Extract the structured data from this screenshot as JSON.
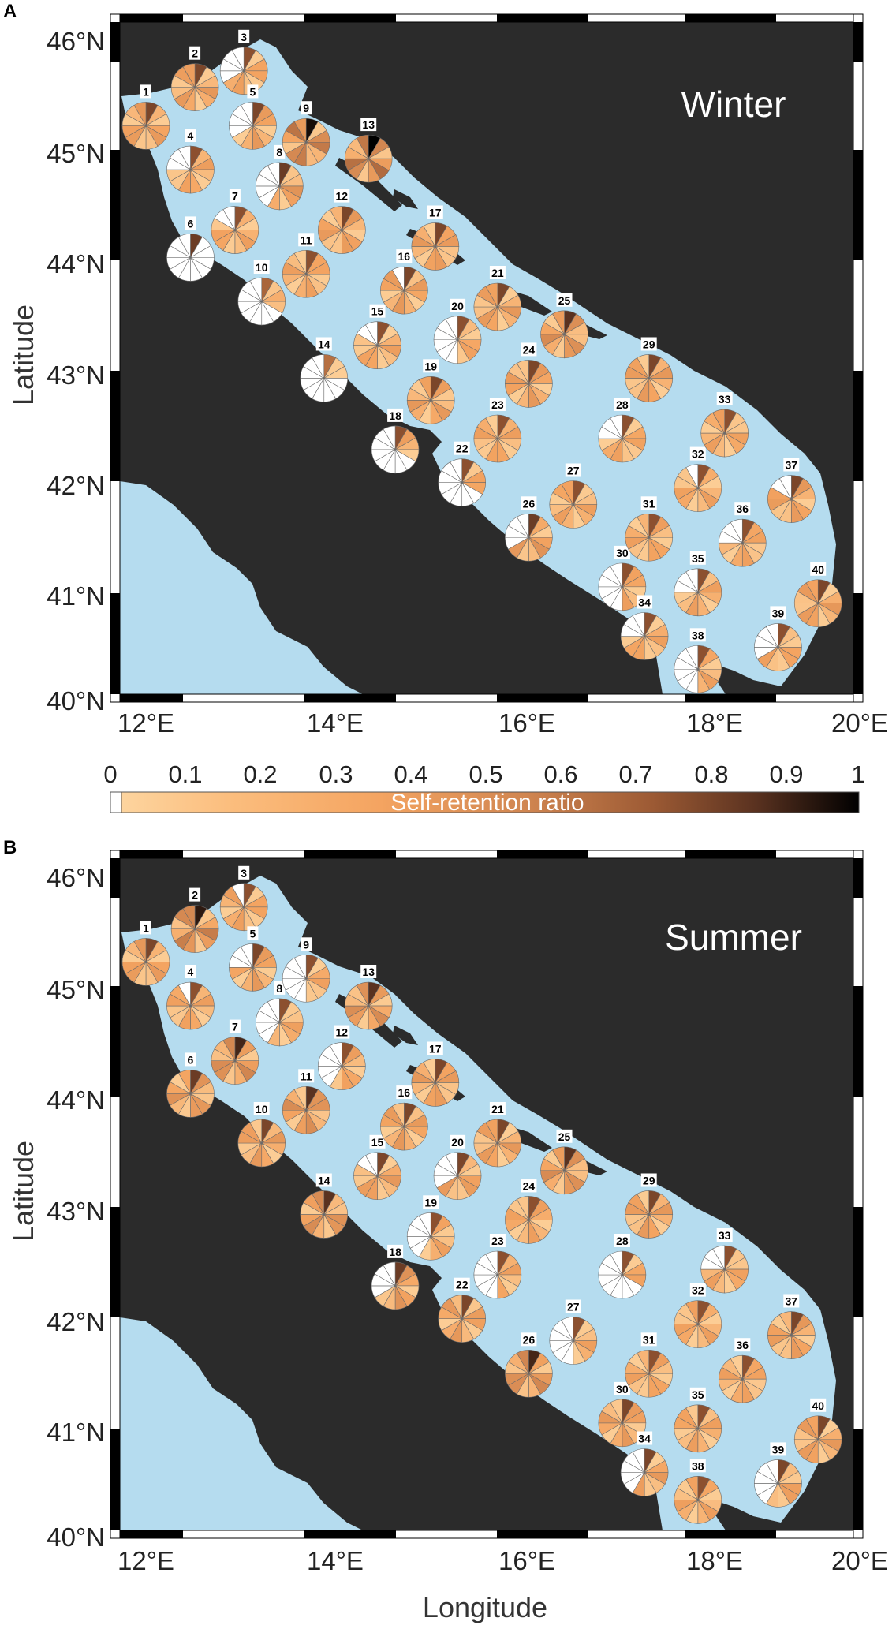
{
  "colors": {
    "sea": "#b5dcef",
    "land": "#2b2b2b",
    "frame_dark": "#000000",
    "frame_light": "#ffffff",
    "colormap": [
      "#ffffff",
      "#fdd49e",
      "#f4a461",
      "#d08550",
      "#9c5a34",
      "#5a3220",
      "#000000"
    ]
  },
  "colorbar": {
    "title": "Self-retention ratio",
    "ticks": [
      "0",
      "0.1",
      "0.2",
      "0.3",
      "0.4",
      "0.5",
      "0.6",
      "0.7",
      "0.8",
      "0.9",
      "1"
    ]
  },
  "axes": {
    "x_ticks": [
      "12°E",
      "14°E",
      "16°E",
      "18°E",
      "20°E"
    ],
    "y_ticks": [
      "40°N",
      "41°N",
      "42°N",
      "43°N",
      "44°N",
      "45°N",
      "46°N"
    ],
    "xlabel": "Longitude",
    "ylabel": "Latitude"
  },
  "panels": [
    {
      "letter": "A",
      "season": "Winter",
      "sites": [
        {
          "id": "1",
          "lon": 12.0,
          "lat": 45.25,
          "dominant": 0.35,
          "white": 0
        },
        {
          "id": "2",
          "lon": 12.55,
          "lat": 45.6,
          "dominant": 0.35,
          "white": 0
        },
        {
          "id": "3",
          "lon": 13.1,
          "lat": 45.75,
          "dominant": 0.3,
          "white": 4
        },
        {
          "id": "4",
          "lon": 12.5,
          "lat": 44.85,
          "dominant": 0.3,
          "white": 3
        },
        {
          "id": "5",
          "lon": 13.2,
          "lat": 45.25,
          "dominant": 0.35,
          "white": 4
        },
        {
          "id": "6",
          "lon": 12.5,
          "lat": 44.05,
          "dominant": 0.4,
          "white": 11
        },
        {
          "id": "7",
          "lon": 13.0,
          "lat": 44.3,
          "dominant": 0.3,
          "white": 2
        },
        {
          "id": "8",
          "lon": 13.5,
          "lat": 44.7,
          "dominant": 0.4,
          "white": 5
        },
        {
          "id": "9",
          "lon": 13.8,
          "lat": 45.1,
          "dominant": 0.6,
          "white": 0
        },
        {
          "id": "10",
          "lon": 13.3,
          "lat": 43.65,
          "dominant": 0.2,
          "white": 8
        },
        {
          "id": "11",
          "lon": 13.8,
          "lat": 43.9,
          "dominant": 0.3,
          "white": 0
        },
        {
          "id": "12",
          "lon": 14.2,
          "lat": 44.3,
          "dominant": 0.35,
          "white": 0
        },
        {
          "id": "13",
          "lon": 14.5,
          "lat": 44.95,
          "dominant": 0.65,
          "white": 0
        },
        {
          "id": "14",
          "lon": 14.0,
          "lat": 42.95,
          "dominant": 0.15,
          "white": 9
        },
        {
          "id": "15",
          "lon": 14.6,
          "lat": 43.25,
          "dominant": 0.3,
          "white": 2
        },
        {
          "id": "16",
          "lon": 14.9,
          "lat": 43.75,
          "dominant": 0.35,
          "white": 1
        },
        {
          "id": "17",
          "lon": 15.25,
          "lat": 44.15,
          "dominant": 0.35,
          "white": 0
        },
        {
          "id": "18",
          "lon": 14.8,
          "lat": 42.3,
          "dominant": 0.3,
          "white": 8
        },
        {
          "id": "19",
          "lon": 15.2,
          "lat": 42.75,
          "dominant": 0.35,
          "white": 0
        },
        {
          "id": "20",
          "lon": 15.5,
          "lat": 43.3,
          "dominant": 0.3,
          "white": 6
        },
        {
          "id": "21",
          "lon": 15.95,
          "lat": 43.6,
          "dominant": 0.35,
          "white": 0
        },
        {
          "id": "22",
          "lon": 15.55,
          "lat": 42.0,
          "dominant": 0.3,
          "white": 8
        },
        {
          "id": "23",
          "lon": 15.95,
          "lat": 42.4,
          "dominant": 0.3,
          "white": 0
        },
        {
          "id": "24",
          "lon": 16.3,
          "lat": 42.9,
          "dominant": 0.35,
          "white": 0
        },
        {
          "id": "25",
          "lon": 16.7,
          "lat": 43.35,
          "dominant": 0.45,
          "white": 0
        },
        {
          "id": "26",
          "lon": 16.3,
          "lat": 41.5,
          "dominant": 0.4,
          "white": 4
        },
        {
          "id": "27",
          "lon": 16.8,
          "lat": 41.8,
          "dominant": 0.3,
          "white": 0
        },
        {
          "id": "28",
          "lon": 17.35,
          "lat": 42.4,
          "dominant": 0.3,
          "white": 3
        },
        {
          "id": "29",
          "lon": 17.65,
          "lat": 42.95,
          "dominant": 0.35,
          "white": 0
        },
        {
          "id": "30",
          "lon": 17.35,
          "lat": 41.05,
          "dominant": 0.3,
          "white": 6
        },
        {
          "id": "31",
          "lon": 17.65,
          "lat": 41.5,
          "dominant": 0.3,
          "white": 0
        },
        {
          "id": "32",
          "lon": 18.2,
          "lat": 41.95,
          "dominant": 0.3,
          "white": 1
        },
        {
          "id": "33",
          "lon": 18.5,
          "lat": 42.45,
          "dominant": 0.3,
          "white": 0
        },
        {
          "id": "34",
          "lon": 17.6,
          "lat": 40.6,
          "dominant": 0.3,
          "white": 3
        },
        {
          "id": "35",
          "lon": 18.2,
          "lat": 41.0,
          "dominant": 0.3,
          "white": 3
        },
        {
          "id": "36",
          "lon": 18.7,
          "lat": 41.45,
          "dominant": 0.3,
          "white": 3
        },
        {
          "id": "37",
          "lon": 19.25,
          "lat": 41.85,
          "dominant": 0.35,
          "white": 2
        },
        {
          "id": "38",
          "lon": 18.2,
          "lat": 40.3,
          "dominant": 0.3,
          "white": 6
        },
        {
          "id": "39",
          "lon": 19.1,
          "lat": 40.5,
          "dominant": 0.3,
          "white": 4
        },
        {
          "id": "40",
          "lon": 19.55,
          "lat": 40.9,
          "dominant": 0.35,
          "white": 0
        }
      ]
    },
    {
      "letter": "B",
      "season": "Summer",
      "sites": [
        {
          "id": "1",
          "lon": 12.0,
          "lat": 45.25,
          "dominant": 0.35,
          "white": 0
        },
        {
          "id": "2",
          "lon": 12.55,
          "lat": 45.55,
          "dominant": 0.55,
          "white": 0
        },
        {
          "id": "3",
          "lon": 13.1,
          "lat": 45.75,
          "dominant": 0.3,
          "white": 1
        },
        {
          "id": "4",
          "lon": 12.5,
          "lat": 44.85,
          "dominant": 0.3,
          "white": 1
        },
        {
          "id": "5",
          "lon": 13.2,
          "lat": 45.2,
          "dominant": 0.35,
          "white": 3
        },
        {
          "id": "6",
          "lon": 12.5,
          "lat": 44.05,
          "dominant": 0.4,
          "white": 0
        },
        {
          "id": "7",
          "lon": 13.0,
          "lat": 44.35,
          "dominant": 0.5,
          "white": 0
        },
        {
          "id": "8",
          "lon": 13.5,
          "lat": 44.7,
          "dominant": 0.3,
          "white": 5
        },
        {
          "id": "9",
          "lon": 13.8,
          "lat": 45.1,
          "dominant": 0.3,
          "white": 6
        },
        {
          "id": "10",
          "lon": 13.3,
          "lat": 43.6,
          "dominant": 0.35,
          "white": 0
        },
        {
          "id": "11",
          "lon": 13.8,
          "lat": 43.9,
          "dominant": 0.45,
          "white": 0
        },
        {
          "id": "12",
          "lon": 14.2,
          "lat": 44.3,
          "dominant": 0.3,
          "white": 5
        },
        {
          "id": "13",
          "lon": 14.5,
          "lat": 44.85,
          "dominant": 0.45,
          "white": 0
        },
        {
          "id": "14",
          "lon": 14.0,
          "lat": 42.95,
          "dominant": 0.45,
          "white": 0
        },
        {
          "id": "15",
          "lon": 14.6,
          "lat": 43.3,
          "dominant": 0.35,
          "white": 2
        },
        {
          "id": "16",
          "lon": 14.9,
          "lat": 43.75,
          "dominant": 0.35,
          "white": 0
        },
        {
          "id": "17",
          "lon": 15.25,
          "lat": 44.15,
          "dominant": 0.35,
          "white": 0
        },
        {
          "id": "18",
          "lon": 14.8,
          "lat": 42.3,
          "dominant": 0.4,
          "white": 4
        },
        {
          "id": "19",
          "lon": 15.2,
          "lat": 42.75,
          "dominant": 0.3,
          "white": 5
        },
        {
          "id": "20",
          "lon": 15.5,
          "lat": 43.3,
          "dominant": 0.35,
          "white": 4
        },
        {
          "id": "21",
          "lon": 15.95,
          "lat": 43.6,
          "dominant": 0.35,
          "white": 0
        },
        {
          "id": "22",
          "lon": 15.55,
          "lat": 42.0,
          "dominant": 0.35,
          "white": 0
        },
        {
          "id": "23",
          "lon": 15.95,
          "lat": 42.4,
          "dominant": 0.3,
          "white": 6
        },
        {
          "id": "24",
          "lon": 16.3,
          "lat": 42.9,
          "dominant": 0.3,
          "white": 0
        },
        {
          "id": "25",
          "lon": 16.7,
          "lat": 43.35,
          "dominant": 0.45,
          "white": 0
        },
        {
          "id": "26",
          "lon": 16.3,
          "lat": 41.5,
          "dominant": 0.5,
          "white": 0
        },
        {
          "id": "27",
          "lon": 16.8,
          "lat": 41.8,
          "dominant": 0.3,
          "white": 6
        },
        {
          "id": "28",
          "lon": 17.35,
          "lat": 42.4,
          "dominant": 0.3,
          "white": 8
        },
        {
          "id": "29",
          "lon": 17.65,
          "lat": 42.95,
          "dominant": 0.35,
          "white": 0
        },
        {
          "id": "30",
          "lon": 17.35,
          "lat": 41.05,
          "dominant": 0.35,
          "white": 0
        },
        {
          "id": "31",
          "lon": 17.65,
          "lat": 41.5,
          "dominant": 0.3,
          "white": 0
        },
        {
          "id": "32",
          "lon": 18.2,
          "lat": 41.95,
          "dominant": 0.3,
          "white": 0
        },
        {
          "id": "33",
          "lon": 18.5,
          "lat": 42.45,
          "dominant": 0.3,
          "white": 3
        },
        {
          "id": "34",
          "lon": 17.6,
          "lat": 40.6,
          "dominant": 0.35,
          "white": 5
        },
        {
          "id": "35",
          "lon": 18.2,
          "lat": 41.0,
          "dominant": 0.3,
          "white": 0
        },
        {
          "id": "36",
          "lon": 18.7,
          "lat": 41.45,
          "dominant": 0.3,
          "white": 0
        },
        {
          "id": "37",
          "lon": 19.25,
          "lat": 41.85,
          "dominant": 0.35,
          "white": 0
        },
        {
          "id": "38",
          "lon": 18.2,
          "lat": 40.35,
          "dominant": 0.3,
          "white": 0
        },
        {
          "id": "39",
          "lon": 19.1,
          "lat": 40.5,
          "dominant": 0.35,
          "white": 5
        },
        {
          "id": "40",
          "lon": 19.55,
          "lat": 40.9,
          "dominant": 0.35,
          "white": 0
        }
      ]
    }
  ]
}
